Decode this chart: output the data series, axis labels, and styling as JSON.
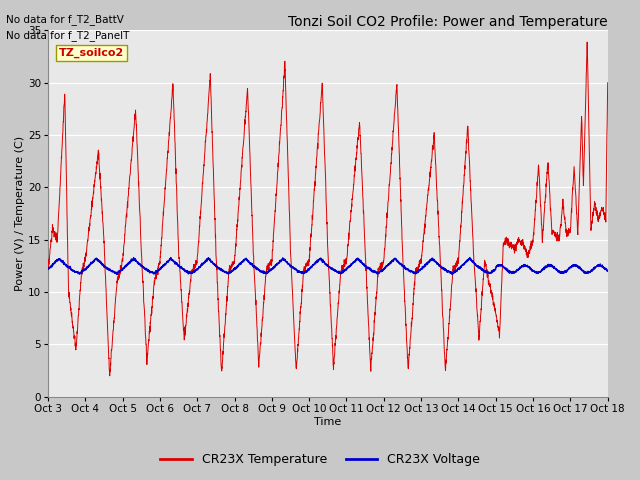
{
  "title": "Tonzi Soil CO2 Profile: Power and Temperature",
  "ylabel": "Power (V) / Temperature (C)",
  "xlabel": "Time",
  "no_data_text_1": "No data for f_T2_BattV",
  "no_data_text_2": "No data for f_T2_PanelT",
  "legend_label_text": "TZ_soilco2",
  "legend_entries": [
    "CR23X Temperature",
    "CR23X Voltage"
  ],
  "ylim": [
    0,
    35
  ],
  "x_tick_labels": [
    "Oct 3",
    "Oct 4",
    "Oct 5",
    "Oct 6",
    "Oct 7",
    "Oct 8",
    "Oct 9",
    "Oct 10",
    "Oct 11",
    "Oct 12",
    "Oct 13",
    "Oct 14",
    "Oct 15",
    "Oct 16",
    "Oct 17",
    "Oct 18"
  ],
  "bg_color": "#c8c8c8",
  "plot_bg_color": "#e8e8e8",
  "title_fontsize": 10,
  "axis_fontsize": 8,
  "tick_fontsize": 7.5
}
